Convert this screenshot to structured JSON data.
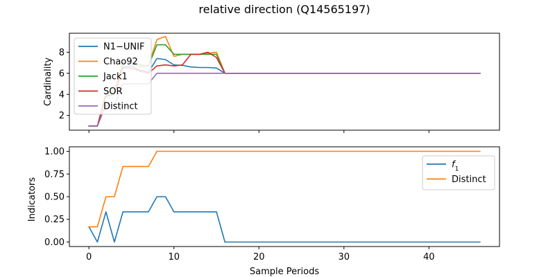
{
  "chart_data": [
    {
      "type": "line",
      "title": "relative direction (Q14565197)",
      "xlabel": "",
      "ylabel": "Cardinality",
      "xlim": [
        -2.3,
        48.3
      ],
      "ylim": [
        0.6,
        9.8
      ],
      "xticks": [
        0,
        10,
        20,
        30,
        40
      ],
      "yticks": [
        2,
        4,
        6,
        8
      ],
      "ytick_labels": [
        "2",
        "4",
        "6",
        "8"
      ],
      "show_xtick_labels": false,
      "legend": "upper left",
      "series": [
        {
          "name": "N1−UNIF",
          "color": "#1f77b4",
          "x": [
            0,
            1,
            2,
            3,
            4,
            5,
            6,
            7,
            8,
            9,
            10,
            11,
            12,
            13,
            14,
            15,
            16,
            17,
            18,
            19,
            20,
            21,
            22,
            23,
            24,
            25,
            26,
            27,
            28,
            29,
            30,
            31,
            32,
            33,
            34,
            35,
            36,
            37,
            38,
            39,
            40,
            41,
            42,
            43,
            44,
            45,
            46
          ],
          "y": [
            1,
            1,
            3.9,
            4,
            6.6,
            6.7,
            6.3,
            6.1,
            7.4,
            7.3,
            6.8,
            6.75,
            6.6,
            6.55,
            6.55,
            6.5,
            6,
            6,
            6,
            6,
            6,
            6,
            6,
            6,
            6,
            6,
            6,
            6,
            6,
            6,
            6,
            6,
            6,
            6,
            6,
            6,
            6,
            6,
            6,
            6,
            6,
            6,
            6,
            6,
            6,
            6,
            6
          ]
        },
        {
          "name": "Chao92",
          "color": "#ff7f0e",
          "x": [
            0,
            1,
            2,
            3,
            4,
            5,
            6,
            7,
            8,
            9,
            10,
            11,
            12,
            13,
            14,
            15,
            16,
            17,
            18,
            19,
            20,
            21,
            22,
            23,
            24,
            25,
            26,
            27,
            28,
            29,
            30,
            31,
            32,
            33,
            34,
            35,
            36,
            37,
            38,
            39,
            40,
            41,
            42,
            43,
            44,
            45,
            46
          ],
          "y": [
            1,
            1,
            4.2,
            4.3,
            7.0,
            7.0,
            6.6,
            6.7,
            9.2,
            9.5,
            7.6,
            7.8,
            7.8,
            7.8,
            7.9,
            8.0,
            6,
            6,
            6,
            6,
            6,
            6,
            6,
            6,
            6,
            6,
            6,
            6,
            6,
            6,
            6,
            6,
            6,
            6,
            6,
            6,
            6,
            6,
            6,
            6,
            6,
            6,
            6,
            6,
            6,
            6,
            6
          ]
        },
        {
          "name": "Jack1",
          "color": "#2ca02c",
          "x": [
            0,
            1,
            2,
            3,
            4,
            5,
            6,
            7,
            8,
            9,
            10,
            11,
            12,
            13,
            14,
            15,
            16,
            17,
            18,
            19,
            20,
            21,
            22,
            23,
            24,
            25,
            26,
            27,
            28,
            29,
            30,
            31,
            32,
            33,
            34,
            35,
            36,
            37,
            38,
            39,
            40,
            41,
            42,
            43,
            44,
            45,
            46
          ],
          "y": [
            1,
            1,
            4.0,
            4.0,
            7.0,
            7.0,
            6.8,
            6.7,
            8.7,
            8.7,
            7.8,
            7.8,
            7.8,
            7.8,
            7.8,
            7.8,
            6,
            6,
            6,
            6,
            6,
            6,
            6,
            6,
            6,
            6,
            6,
            6,
            6,
            6,
            6,
            6,
            6,
            6,
            6,
            6,
            6,
            6,
            6,
            6,
            6,
            6,
            6,
            6,
            6,
            6,
            6
          ]
        },
        {
          "name": "SOR",
          "color": "#d62728",
          "x": [
            0,
            1,
            2,
            3,
            4,
            5,
            6,
            7,
            8,
            9,
            10,
            11,
            12,
            13,
            14,
            15,
            16,
            17,
            18,
            19,
            20,
            21,
            22,
            23,
            24,
            25,
            26,
            27,
            28,
            29,
            30,
            31,
            32,
            33,
            34,
            35,
            36,
            37,
            38,
            39,
            40,
            41,
            42,
            43,
            44,
            45,
            46
          ],
          "y": [
            1,
            1,
            3.8,
            4.0,
            6.5,
            6.5,
            6.2,
            6.0,
            6.7,
            6.8,
            6.7,
            6.8,
            7.8,
            7.8,
            8.0,
            7.5,
            6,
            6,
            6,
            6,
            6,
            6,
            6,
            6,
            6,
            6,
            6,
            6,
            6,
            6,
            6,
            6,
            6,
            6,
            6,
            6,
            6,
            6,
            6,
            6,
            6,
            6,
            6,
            6,
            6,
            6,
            6
          ]
        },
        {
          "name": "Distinct",
          "color": "#9467bd",
          "x": [
            0,
            1,
            2,
            3,
            4,
            5,
            6,
            7,
            8,
            9,
            10,
            11,
            12,
            13,
            14,
            15,
            16,
            17,
            18,
            19,
            20,
            21,
            22,
            23,
            24,
            25,
            26,
            27,
            28,
            29,
            30,
            31,
            32,
            33,
            34,
            35,
            36,
            37,
            38,
            39,
            40,
            41,
            42,
            43,
            44,
            45,
            46
          ],
          "y": [
            1,
            1,
            3,
            3,
            5,
            5,
            5,
            5,
            6,
            6,
            6,
            6,
            6,
            6,
            6,
            6,
            6,
            6,
            6,
            6,
            6,
            6,
            6,
            6,
            6,
            6,
            6,
            6,
            6,
            6,
            6,
            6,
            6,
            6,
            6,
            6,
            6,
            6,
            6,
            6,
            6,
            6,
            6,
            6,
            6,
            6,
            6
          ]
        }
      ]
    },
    {
      "type": "line",
      "xlabel": "Sample Periods",
      "ylabel": "Indicators",
      "xlim": [
        -2.3,
        48.3
      ],
      "ylim": [
        -0.05,
        1.05
      ],
      "xticks": [
        0,
        10,
        20,
        30,
        40
      ],
      "xtick_labels": [
        "0",
        "10",
        "20",
        "30",
        "40"
      ],
      "yticks": [
        0,
        0.25,
        0.5,
        0.75,
        1.0
      ],
      "ytick_labels": [
        "0.00",
        "0.25",
        "0.50",
        "0.75",
        "1.00"
      ],
      "show_xtick_labels": true,
      "legend": "upper right",
      "series": [
        {
          "name": "f1",
          "color": "#1f77b4",
          "x": [
            0,
            1,
            2,
            3,
            4,
            5,
            6,
            7,
            8,
            9,
            10,
            11,
            12,
            13,
            14,
            15,
            16,
            17,
            18,
            19,
            20,
            21,
            22,
            23,
            24,
            25,
            26,
            27,
            28,
            29,
            30,
            31,
            32,
            33,
            34,
            35,
            36,
            37,
            38,
            39,
            40,
            41,
            42,
            43,
            44,
            45,
            46
          ],
          "y": [
            0.167,
            0,
            0.333,
            0,
            0.333,
            0.333,
            0.333,
            0.333,
            0.5,
            0.5,
            0.333,
            0.333,
            0.333,
            0.333,
            0.333,
            0.333,
            0,
            0,
            0,
            0,
            0,
            0,
            0,
            0,
            0,
            0,
            0,
            0,
            0,
            0,
            0,
            0,
            0,
            0,
            0,
            0,
            0,
            0,
            0,
            0,
            0,
            0,
            0,
            0,
            0,
            0,
            0
          ]
        },
        {
          "name": "Distinct",
          "color": "#ff7f0e",
          "x": [
            0,
            1,
            2,
            3,
            4,
            5,
            6,
            7,
            8,
            9,
            10,
            11,
            12,
            13,
            14,
            15,
            16,
            17,
            18,
            19,
            20,
            21,
            22,
            23,
            24,
            25,
            26,
            27,
            28,
            29,
            30,
            31,
            32,
            33,
            34,
            35,
            36,
            37,
            38,
            39,
            40,
            41,
            42,
            43,
            44,
            45,
            46
          ],
          "y": [
            0.167,
            0.167,
            0.5,
            0.5,
            0.833,
            0.833,
            0.833,
            0.833,
            1,
            1,
            1,
            1,
            1,
            1,
            1,
            1,
            1,
            1,
            1,
            1,
            1,
            1,
            1,
            1,
            1,
            1,
            1,
            1,
            1,
            1,
            1,
            1,
            1,
            1,
            1,
            1,
            1,
            1,
            1,
            1,
            1,
            1,
            1,
            1,
            1,
            1,
            1
          ]
        }
      ]
    }
  ]
}
